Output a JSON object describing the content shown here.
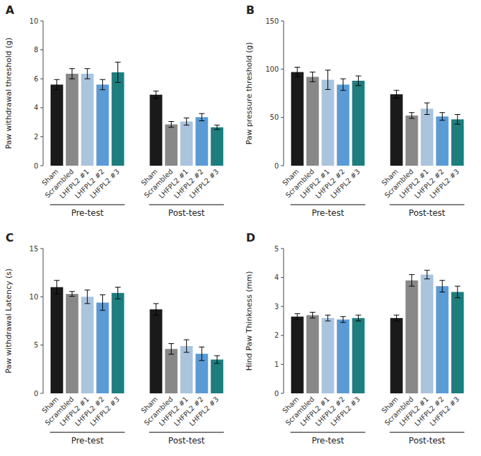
{
  "chart_data": [
    {
      "type": "bar",
      "title": "A",
      "ylabel": "Paw withdrawal threshold (g)",
      "categories": [
        "Sham",
        "Scrambled",
        "LHFPL2 #1",
        "LHFPL2 #2",
        "LHFPL2 #3"
      ],
      "colors": [
        "#1a1a1a",
        "#888888",
        "#aac4de",
        "#5b9bd5",
        "#1e7d7d"
      ],
      "series": [
        {
          "name": "Pre-test",
          "values": [
            5.6,
            6.35,
            6.35,
            5.6,
            6.45
          ],
          "errors": [
            0.35,
            0.35,
            0.35,
            0.35,
            0.7
          ]
        },
        {
          "name": "Post-test",
          "values": [
            4.9,
            2.85,
            3.05,
            3.35,
            2.65
          ],
          "errors": [
            0.25,
            0.2,
            0.25,
            0.25,
            0.15
          ]
        }
      ],
      "ylim": [
        0,
        10
      ],
      "yticks": [
        0,
        2,
        4,
        6,
        8,
        10
      ]
    },
    {
      "type": "bar",
      "title": "B",
      "ylabel": "Paw pressure threshold (g)",
      "categories": [
        "Sham",
        "Scrambled",
        "LHFPL2 #1",
        "LHFPL2 #2",
        "LHFPL2 #3"
      ],
      "colors": [
        "#1a1a1a",
        "#888888",
        "#aac4de",
        "#5b9bd5",
        "#1e7d7d"
      ],
      "series": [
        {
          "name": "Pre-test",
          "values": [
            97,
            92,
            89,
            84,
            88
          ],
          "errors": [
            5,
            5,
            10,
            6,
            5
          ]
        },
        {
          "name": "Post-test",
          "values": [
            74,
            52,
            59,
            51,
            48
          ],
          "errors": [
            4,
            3,
            6,
            4,
            5
          ]
        }
      ],
      "ylim": [
        0,
        150
      ],
      "yticks": [
        0,
        50,
        100,
        150
      ]
    },
    {
      "type": "bar",
      "title": "C",
      "ylabel": "Paw withdrawal Latency (s)",
      "categories": [
        "Sham",
        "Scrambled",
        "LHFPL2 #1",
        "LHFPL2 #2",
        "LHFPL2 #3"
      ],
      "colors": [
        "#1a1a1a",
        "#888888",
        "#aac4de",
        "#5b9bd5",
        "#1e7d7d"
      ],
      "series": [
        {
          "name": "Pre-test",
          "values": [
            11.0,
            10.3,
            10.0,
            9.4,
            10.4
          ],
          "errors": [
            0.7,
            0.25,
            0.7,
            0.8,
            0.6
          ]
        },
        {
          "name": "Post-test",
          "values": [
            8.7,
            4.6,
            4.9,
            4.1,
            3.5
          ],
          "errors": [
            0.6,
            0.55,
            0.65,
            0.7,
            0.4
          ]
        }
      ],
      "ylim": [
        0,
        15
      ],
      "yticks": [
        0,
        5,
        10,
        15
      ]
    },
    {
      "type": "bar",
      "title": "D",
      "ylabel": "Hind Paw Thinkness (mm)",
      "categories": [
        "Sham",
        "Scrambled",
        "LHFPL2 #1",
        "LHFPL2 #2",
        "LHFPL2 #3"
      ],
      "colors": [
        "#1a1a1a",
        "#888888",
        "#aac4de",
        "#5b9bd5",
        "#1e7d7d"
      ],
      "series": [
        {
          "name": "Pre-test",
          "values": [
            2.65,
            2.7,
            2.6,
            2.55,
            2.6
          ],
          "errors": [
            0.1,
            0.1,
            0.1,
            0.1,
            0.1
          ]
        },
        {
          "name": "Post-test",
          "values": [
            2.6,
            3.9,
            4.1,
            3.7,
            3.5
          ],
          "errors": [
            0.1,
            0.2,
            0.15,
            0.2,
            0.2
          ]
        }
      ],
      "ylim": [
        0,
        5
      ],
      "yticks": [
        0,
        1,
        2,
        3,
        4,
        5
      ]
    }
  ]
}
